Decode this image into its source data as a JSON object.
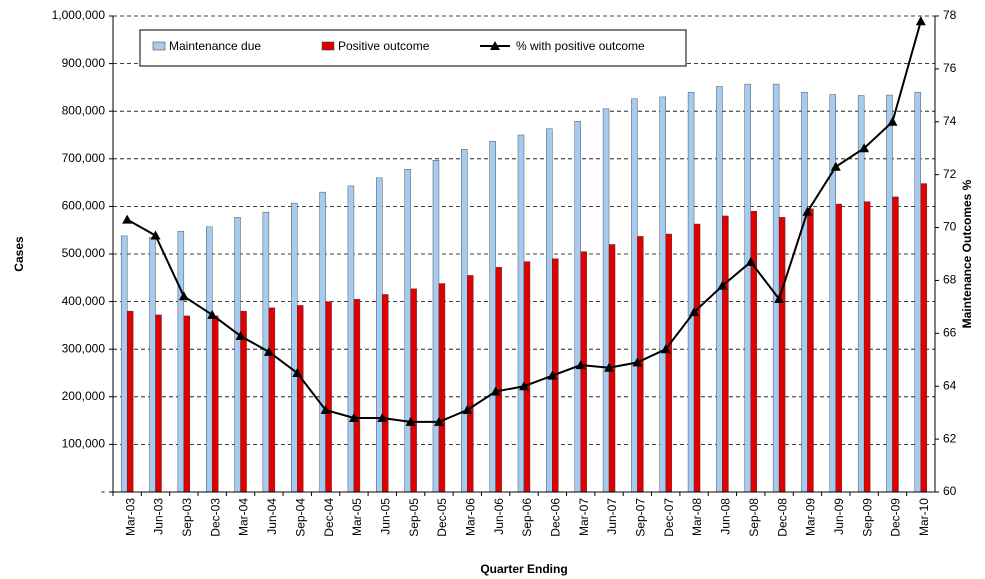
{
  "chart_data": {
    "type": "bar-line",
    "x_label": "Quarter Ending",
    "y_label": "Cases",
    "y2_label": "Maintenance Outcomes %",
    "categories": [
      "Mar-03",
      "Jun-03",
      "Sep-03",
      "Dec-03",
      "Mar-04",
      "Jun-04",
      "Sep-04",
      "Dec-04",
      "Mar-05",
      "Jun-05",
      "Sep-05",
      "Dec-05",
      "Mar-06",
      "Jun-06",
      "Sep-06",
      "Dec-06",
      "Mar-07",
      "Jun-07",
      "Sep-07",
      "Dec-07",
      "Mar-08",
      "Jun-08",
      "Sep-08",
      "Dec-08",
      "Mar-09",
      "Jun-09",
      "Sep-09",
      "Dec-09",
      "Mar-10"
    ],
    "series": [
      {
        "name": "Maintenance due",
        "color": "#a6caf0",
        "kind": "bar",
        "values": [
          538000,
          535000,
          548000,
          557000,
          577000,
          588000,
          607000,
          630000,
          643000,
          660000,
          678000,
          697000,
          720000,
          737000,
          750000,
          763000,
          779000,
          805000,
          826000,
          830000,
          840000,
          852000,
          857000,
          857000,
          840000,
          835000,
          833000,
          834000,
          840000
        ]
      },
      {
        "name": "Positive outcome",
        "color": "#e00000",
        "kind": "bar",
        "values": [
          380000,
          372000,
          370000,
          370000,
          380000,
          387000,
          392000,
          400000,
          405000,
          415000,
          427000,
          438000,
          455000,
          472000,
          484000,
          490000,
          505000,
          520000,
          537000,
          542000,
          563000,
          580000,
          590000,
          577000,
          595000,
          605000,
          610000,
          620000,
          648000
        ]
      },
      {
        "name": "% with positive outcome",
        "color": "#000000",
        "kind": "line",
        "axis": "y2",
        "values": [
          70.3,
          69.7,
          67.4,
          66.7,
          65.9,
          65.3,
          64.5,
          63.1,
          62.8,
          62.8,
          62.65,
          62.65,
          63.1,
          63.8,
          64.0,
          64.4,
          64.8,
          64.7,
          64.9,
          65.4,
          66.8,
          67.8,
          68.7,
          67.3,
          70.6,
          72.3,
          73.0,
          74.0,
          77.8
        ]
      }
    ],
    "ylim": [
      0,
      1000000
    ],
    "yticks": [
      {
        "value": 0,
        "label": "-"
      },
      {
        "value": 100000,
        "label": "100,000"
      },
      {
        "value": 200000,
        "label": "200,000"
      },
      {
        "value": 300000,
        "label": "300,000"
      },
      {
        "value": 400000,
        "label": "400,000"
      },
      {
        "value": 500000,
        "label": "500,000"
      },
      {
        "value": 600000,
        "label": "600,000"
      },
      {
        "value": 700000,
        "label": "700,000"
      },
      {
        "value": 800000,
        "label": "800,000"
      },
      {
        "value": 900000,
        "label": "900,000"
      },
      {
        "value": 1000000,
        "label": "1,000,000"
      }
    ],
    "y2lim": [
      60,
      78
    ],
    "y2ticks": [
      60,
      62,
      64,
      66,
      68,
      70,
      72,
      74,
      76,
      78
    ],
    "grid": true
  }
}
